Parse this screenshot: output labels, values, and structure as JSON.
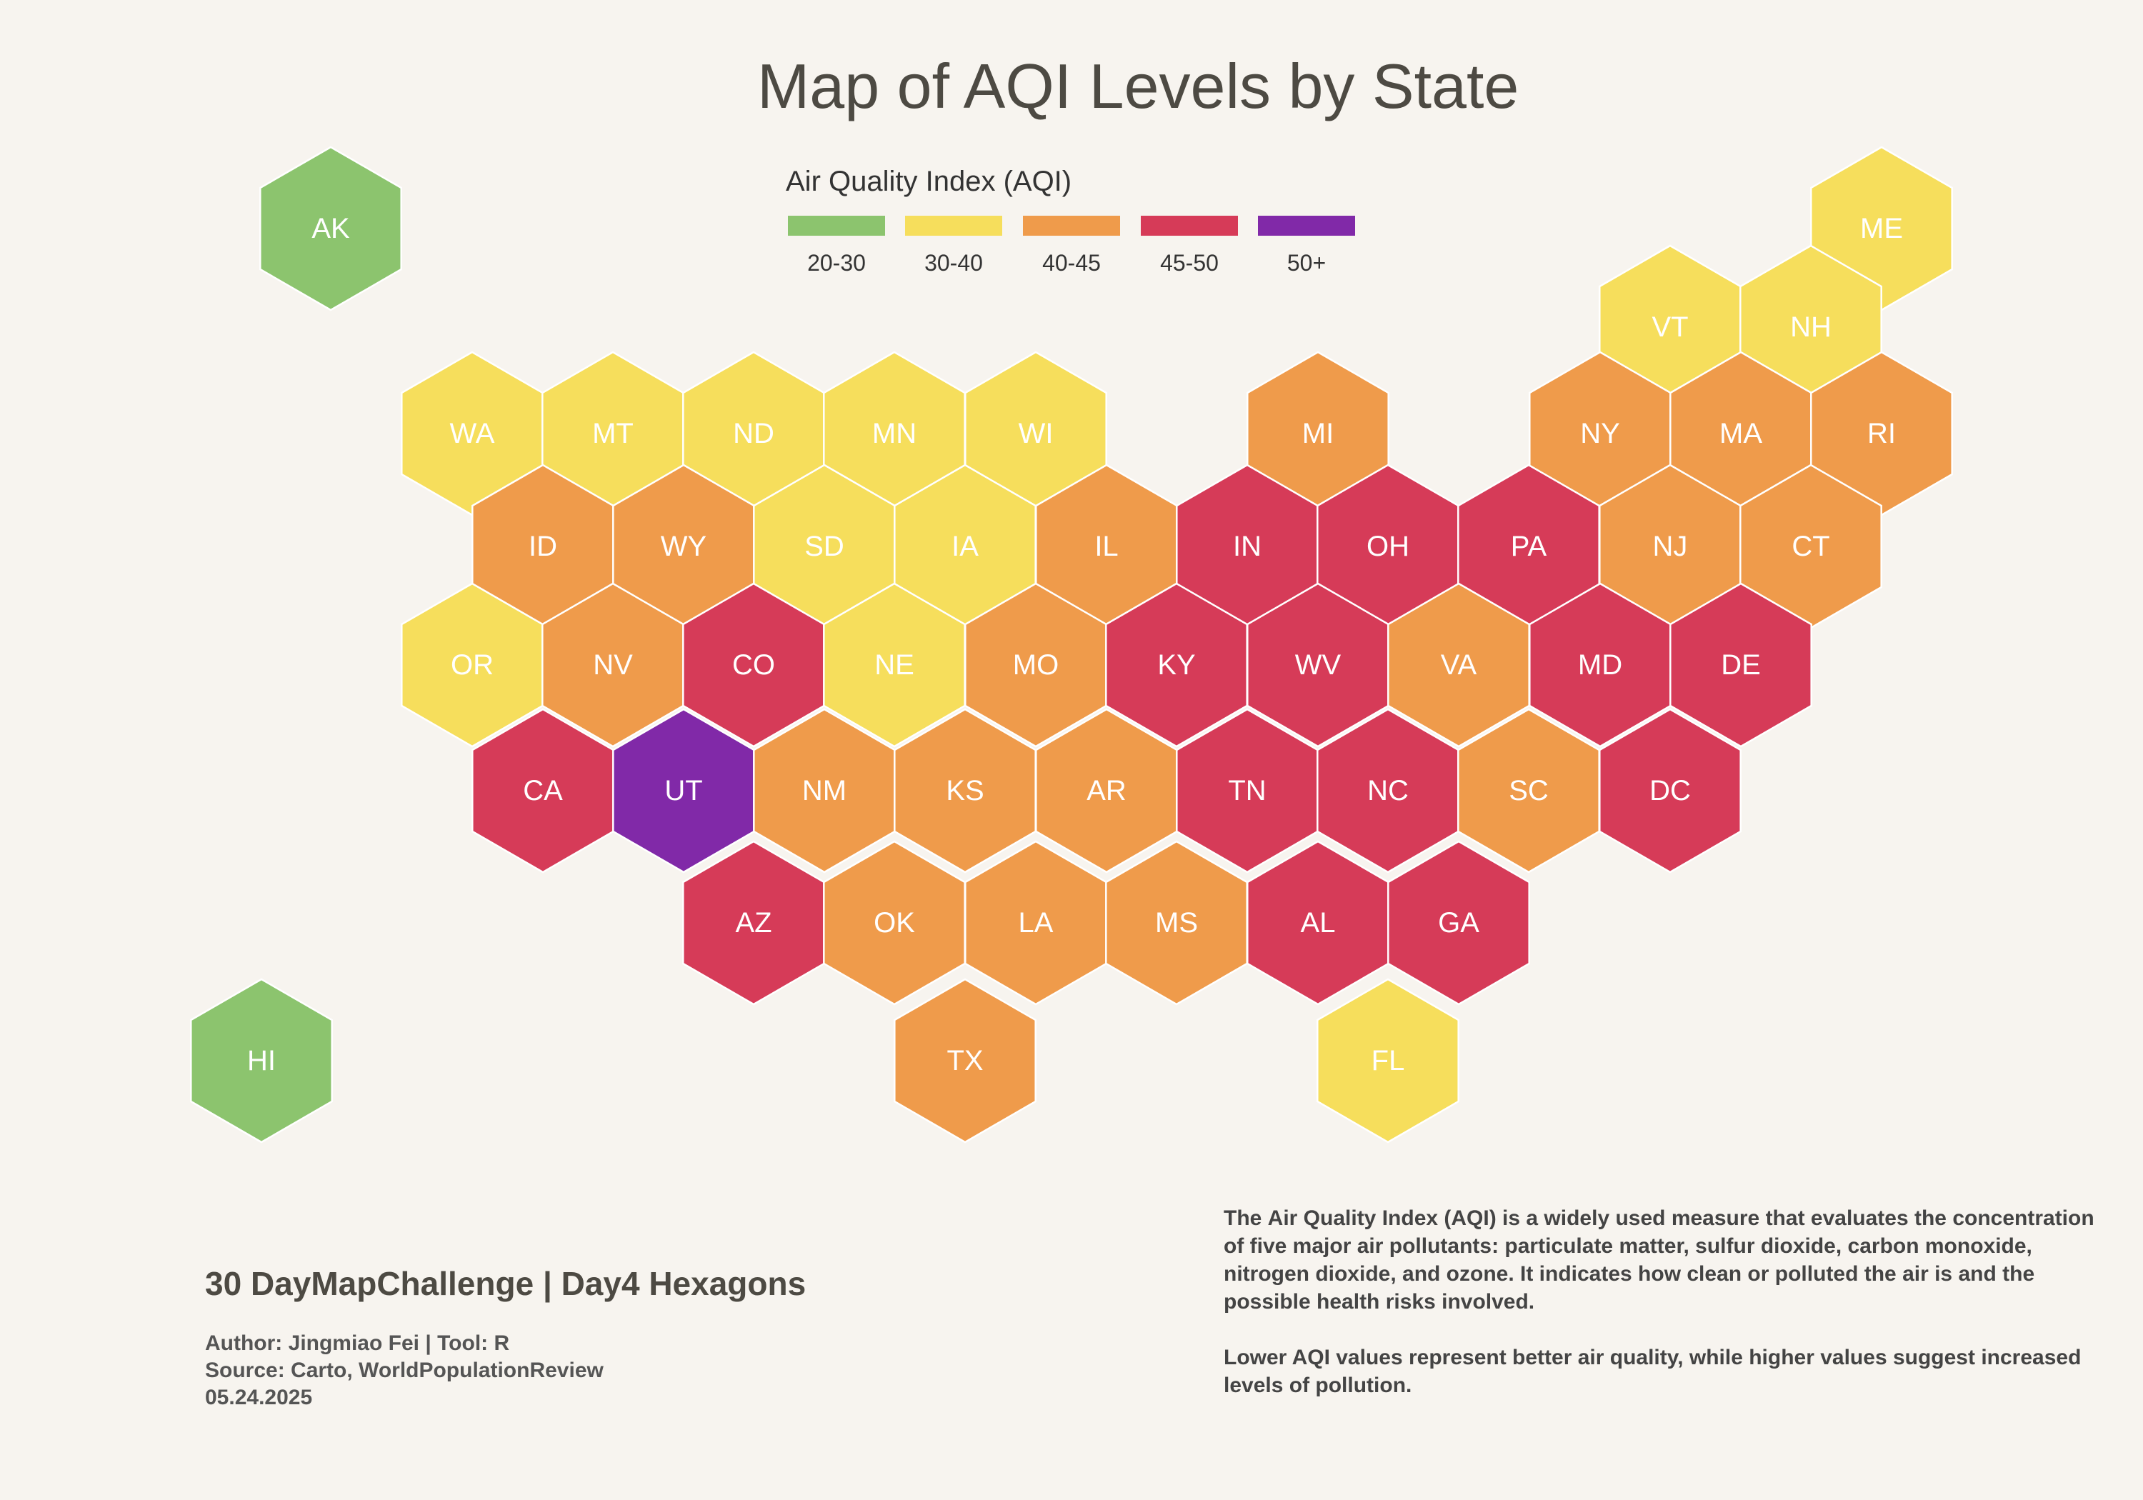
{
  "title": "Map of AQI Levels by State",
  "legend": {
    "title": "Air Quality Index (AQI)",
    "bins": [
      {
        "label": "20-30",
        "color": "#8cc46e"
      },
      {
        "label": "30-40",
        "color": "#f6de5c"
      },
      {
        "label": "40-45",
        "color": "#ef9b4b"
      },
      {
        "label": "45-50",
        "color": "#d63b58"
      },
      {
        "label": "50+",
        "color": "#8129a8"
      }
    ]
  },
  "chart_data": {
    "type": "hex-tile-map",
    "states": [
      {
        "abbr": "AK",
        "bin": "20-30"
      },
      {
        "abbr": "HI",
        "bin": "20-30"
      },
      {
        "abbr": "ME",
        "bin": "30-40"
      },
      {
        "abbr": "VT",
        "bin": "30-40"
      },
      {
        "abbr": "NH",
        "bin": "30-40"
      },
      {
        "abbr": "WA",
        "bin": "30-40"
      },
      {
        "abbr": "MT",
        "bin": "30-40"
      },
      {
        "abbr": "ND",
        "bin": "30-40"
      },
      {
        "abbr": "MN",
        "bin": "30-40"
      },
      {
        "abbr": "WI",
        "bin": "30-40"
      },
      {
        "abbr": "MI",
        "bin": "40-45"
      },
      {
        "abbr": "NY",
        "bin": "40-45"
      },
      {
        "abbr": "MA",
        "bin": "40-45"
      },
      {
        "abbr": "RI",
        "bin": "40-45"
      },
      {
        "abbr": "ID",
        "bin": "40-45"
      },
      {
        "abbr": "WY",
        "bin": "40-45"
      },
      {
        "abbr": "SD",
        "bin": "30-40"
      },
      {
        "abbr": "IA",
        "bin": "30-40"
      },
      {
        "abbr": "IL",
        "bin": "40-45"
      },
      {
        "abbr": "IN",
        "bin": "45-50"
      },
      {
        "abbr": "OH",
        "bin": "45-50"
      },
      {
        "abbr": "PA",
        "bin": "45-50"
      },
      {
        "abbr": "NJ",
        "bin": "40-45"
      },
      {
        "abbr": "CT",
        "bin": "40-45"
      },
      {
        "abbr": "OR",
        "bin": "30-40"
      },
      {
        "abbr": "NV",
        "bin": "40-45"
      },
      {
        "abbr": "CO",
        "bin": "45-50"
      },
      {
        "abbr": "NE",
        "bin": "30-40"
      },
      {
        "abbr": "MO",
        "bin": "40-45"
      },
      {
        "abbr": "KY",
        "bin": "45-50"
      },
      {
        "abbr": "WV",
        "bin": "45-50"
      },
      {
        "abbr": "VA",
        "bin": "40-45"
      },
      {
        "abbr": "MD",
        "bin": "45-50"
      },
      {
        "abbr": "DE",
        "bin": "45-50"
      },
      {
        "abbr": "CA",
        "bin": "45-50"
      },
      {
        "abbr": "UT",
        "bin": "50+"
      },
      {
        "abbr": "NM",
        "bin": "40-45"
      },
      {
        "abbr": "KS",
        "bin": "40-45"
      },
      {
        "abbr": "AR",
        "bin": "40-45"
      },
      {
        "abbr": "TN",
        "bin": "45-50"
      },
      {
        "abbr": "NC",
        "bin": "45-50"
      },
      {
        "abbr": "SC",
        "bin": "40-45"
      },
      {
        "abbr": "DC",
        "bin": "45-50"
      },
      {
        "abbr": "AZ",
        "bin": "45-50"
      },
      {
        "abbr": "OK",
        "bin": "40-45"
      },
      {
        "abbr": "LA",
        "bin": "40-45"
      },
      {
        "abbr": "MS",
        "bin": "40-45"
      },
      {
        "abbr": "AL",
        "bin": "45-50"
      },
      {
        "abbr": "GA",
        "bin": "45-50"
      },
      {
        "abbr": "TX",
        "bin": "40-45"
      },
      {
        "abbr": "FL",
        "bin": "30-40"
      }
    ]
  },
  "footer": {
    "heading": "30 DayMapChallenge | Day4 Hexagons",
    "author": "Author: Jingmiao Fei | Tool: R",
    "source": "Source: Carto, WorldPopulationReview",
    "date": "05.24.2025"
  },
  "description": {
    "p1_a": "The ",
    "p1_b": "Air Quality Index (AQI)",
    "p1_c": " is a widely used measure that evaluates the concentration of ",
    "p1_d": "five major air pollutants",
    "p1_e": ": particulate matter, sulfur dioxide, carbon monoxide, nitrogen dioxide, and ozone. It indicates how clean or polluted the air is and the possible health risks involved.",
    "p2": "Lower AQI values represent better air quality, while higher values suggest increased levels of pollution."
  }
}
